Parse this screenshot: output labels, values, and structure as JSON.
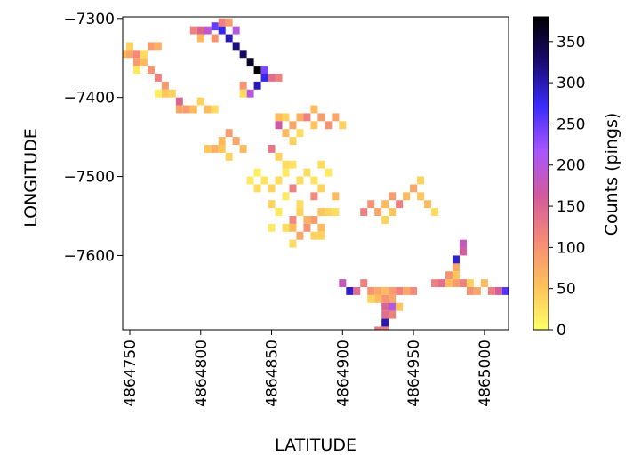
{
  "chart_data": {
    "type": "heatmap",
    "title": "",
    "xlabel": "LATITUDE",
    "ylabel": "LONGITUDE",
    "xlim": [
      4864745,
      4865017
    ],
    "ylim": [
      -7694,
      -7298
    ],
    "x_ticks": [
      4864750,
      4864800,
      4864850,
      4864900,
      4864950,
      4865000
    ],
    "y_ticks": [
      -7300,
      -7400,
      -7500,
      -7600
    ],
    "colorbar": {
      "label": "Counts (pings)",
      "range": [
        0,
        380
      ],
      "ticks": [
        0,
        50,
        100,
        150,
        200,
        250,
        300,
        350
      ],
      "colormap": "gnuplot2_r",
      "stops": [
        "#ffff66",
        "#ffc05a",
        "#f58a78",
        "#d25a9c",
        "#a855ff",
        "#3a2cff",
        "#1a0a70",
        "#000000"
      ]
    },
    "grid": false,
    "cell_size": [
      5,
      10
    ],
    "cells": [
      [
        4864750,
        -7335,
        40
      ],
      [
        4864750,
        -7345,
        80
      ],
      [
        4864755,
        -7345,
        110
      ],
      [
        4864755,
        -7355,
        90
      ],
      [
        4864760,
        -7355,
        60
      ],
      [
        4864760,
        -7345,
        30
      ],
      [
        4864765,
        -7335,
        90
      ],
      [
        4864770,
        -7335,
        70
      ],
      [
        4864765,
        -7365,
        100
      ],
      [
        4864770,
        -7375,
        120
      ],
      [
        4864775,
        -7385,
        90
      ],
      [
        4864775,
        -7395,
        50
      ],
      [
        4864780,
        -7395,
        40
      ],
      [
        4864785,
        -7405,
        150
      ],
      [
        4864785,
        -7415,
        80
      ],
      [
        4864790,
        -7415,
        90
      ],
      [
        4864795,
        -7415,
        60
      ],
      [
        4864800,
        -7405,
        40
      ],
      [
        4864805,
        -7415,
        60
      ],
      [
        4864810,
        -7415,
        30
      ],
      [
        4864755,
        -7365,
        20
      ],
      [
        4864770,
        -7395,
        15
      ],
      [
        4864745,
        -7345,
        60
      ],
      [
        4864795,
        -7315,
        120
      ],
      [
        4864800,
        -7315,
        150
      ],
      [
        4864805,
        -7315,
        190
      ],
      [
        4864810,
        -7310,
        250
      ],
      [
        4864815,
        -7315,
        280
      ],
      [
        4864820,
        -7325,
        300
      ],
      [
        4864825,
        -7335,
        320
      ],
      [
        4864830,
        -7345,
        330
      ],
      [
        4864835,
        -7355,
        360
      ],
      [
        4864840,
        -7365,
        380
      ],
      [
        4864845,
        -7365,
        240
      ],
      [
        4864845,
        -7375,
        280
      ],
      [
        4864840,
        -7385,
        300
      ],
      [
        4864835,
        -7395,
        200
      ],
      [
        4864850,
        -7375,
        140
      ],
      [
        4864855,
        -7375,
        120
      ],
      [
        4864830,
        -7385,
        100
      ],
      [
        4864815,
        -7305,
        120
      ],
      [
        4864820,
        -7305,
        90
      ],
      [
        4864825,
        -7315,
        200
      ],
      [
        4864810,
        -7325,
        100
      ],
      [
        4864800,
        -7325,
        60
      ],
      [
        4864830,
        -7395,
        30
      ],
      [
        4864855,
        -7425,
        60
      ],
      [
        4864860,
        -7425,
        40
      ],
      [
        4864865,
        -7435,
        80
      ],
      [
        4864870,
        -7425,
        70
      ],
      [
        4864875,
        -7425,
        120
      ],
      [
        4864880,
        -7415,
        60
      ],
      [
        4864885,
        -7425,
        90
      ],
      [
        4864880,
        -7435,
        50
      ],
      [
        4864890,
        -7435,
        100
      ],
      [
        4864895,
        -7425,
        80
      ],
      [
        4864900,
        -7435,
        40
      ],
      [
        4864870,
        -7445,
        30
      ],
      [
        4864865,
        -7455,
        40
      ],
      [
        4864860,
        -7445,
        60
      ],
      [
        4864855,
        -7435,
        170
      ],
      [
        4864805,
        -7465,
        50
      ],
      [
        4864810,
        -7465,
        70
      ],
      [
        4864815,
        -7455,
        60
      ],
      [
        4864820,
        -7445,
        90
      ],
      [
        4864825,
        -7455,
        80
      ],
      [
        4864830,
        -7465,
        60
      ],
      [
        4864815,
        -7465,
        50
      ],
      [
        4864820,
        -7475,
        40
      ],
      [
        4864850,
        -7465,
        130
      ],
      [
        4864855,
        -7475,
        40
      ],
      [
        4864860,
        -7485,
        30
      ],
      [
        4864835,
        -7505,
        20
      ],
      [
        4864840,
        -7515,
        30
      ],
      [
        4864845,
        -7505,
        25
      ],
      [
        4864840,
        -7495,
        15
      ],
      [
        4864850,
        -7515,
        40
      ],
      [
        4864855,
        -7505,
        30
      ],
      [
        4864860,
        -7495,
        20
      ],
      [
        4864865,
        -7485,
        25
      ],
      [
        4864870,
        -7505,
        30
      ],
      [
        4864865,
        -7515,
        120
      ],
      [
        4864860,
        -7525,
        20
      ],
      [
        4864875,
        -7495,
        30
      ],
      [
        4864880,
        -7505,
        25
      ],
      [
        4864885,
        -7515,
        40
      ],
      [
        4864880,
        -7525,
        110
      ],
      [
        4864885,
        -7485,
        30
      ],
      [
        4864890,
        -7495,
        20
      ],
      [
        4864895,
        -7525,
        60
      ],
      [
        4864890,
        -7545,
        40
      ],
      [
        4864895,
        -7545,
        30
      ],
      [
        4864850,
        -7535,
        40
      ],
      [
        4864855,
        -7545,
        20
      ],
      [
        4864870,
        -7535,
        30
      ],
      [
        4864860,
        -7565,
        30
      ],
      [
        4864865,
        -7565,
        60
      ],
      [
        4864870,
        -7575,
        80
      ],
      [
        4864875,
        -7565,
        100
      ],
      [
        4864880,
        -7555,
        90
      ],
      [
        4864885,
        -7565,
        60
      ],
      [
        4864880,
        -7575,
        40
      ],
      [
        4864885,
        -7545,
        50
      ],
      [
        4864875,
        -7555,
        70
      ],
      [
        4864870,
        -7545,
        40
      ],
      [
        4864865,
        -7555,
        110
      ],
      [
        4864865,
        -7585,
        30
      ],
      [
        4864850,
        -7565,
        20
      ],
      [
        4864885,
        -7575,
        40
      ],
      [
        4864915,
        -7545,
        120
      ],
      [
        4864920,
        -7535,
        100
      ],
      [
        4864925,
        -7545,
        80
      ],
      [
        4864930,
        -7535,
        60
      ],
      [
        4864935,
        -7525,
        90
      ],
      [
        4864940,
        -7535,
        120
      ],
      [
        4864945,
        -7525,
        60
      ],
      [
        4864950,
        -7515,
        80
      ],
      [
        4864955,
        -7525,
        50
      ],
      [
        4864960,
        -7535,
        60
      ],
      [
        4864955,
        -7505,
        40
      ],
      [
        4864930,
        -7555,
        40
      ],
      [
        4864935,
        -7545,
        50
      ],
      [
        4864965,
        -7545,
        30
      ],
      [
        4864900,
        -7635,
        180
      ],
      [
        4864905,
        -7645,
        290
      ],
      [
        4864910,
        -7645,
        140
      ],
      [
        4864915,
        -7635,
        120
      ],
      [
        4864920,
        -7645,
        100
      ],
      [
        4864925,
        -7645,
        80
      ],
      [
        4864930,
        -7645,
        60
      ],
      [
        4864935,
        -7645,
        90
      ],
      [
        4864940,
        -7645,
        120
      ],
      [
        4864945,
        -7645,
        80
      ],
      [
        4864950,
        -7645,
        110
      ],
      [
        4864925,
        -7655,
        60
      ],
      [
        4864930,
        -7655,
        100
      ],
      [
        4864935,
        -7655,
        80
      ],
      [
        4864930,
        -7665,
        150
      ],
      [
        4864935,
        -7665,
        200
      ],
      [
        4864930,
        -7675,
        140
      ],
      [
        4864935,
        -7675,
        120
      ],
      [
        4864930,
        -7685,
        300
      ],
      [
        4864930,
        -7695,
        120
      ],
      [
        4864925,
        -7695,
        130
      ],
      [
        4864920,
        -7655,
        40
      ],
      [
        4864940,
        -7665,
        50
      ],
      [
        4864965,
        -7635,
        120
      ],
      [
        4864970,
        -7635,
        140
      ],
      [
        4864975,
        -7625,
        100
      ],
      [
        4864980,
        -7615,
        80
      ],
      [
        4864980,
        -7605,
        290
      ],
      [
        4864985,
        -7595,
        160
      ],
      [
        4864985,
        -7585,
        180
      ],
      [
        4864975,
        -7635,
        60
      ],
      [
        4864980,
        -7635,
        90
      ],
      [
        4864985,
        -7635,
        120
      ],
      [
        4864990,
        -7645,
        100
      ],
      [
        4864995,
        -7645,
        80
      ],
      [
        4865000,
        -7635,
        60
      ],
      [
        4865005,
        -7645,
        120
      ],
      [
        4865010,
        -7645,
        160
      ],
      [
        4865015,
        -7645,
        260
      ],
      [
        4864990,
        -7635,
        40
      ],
      [
        4864980,
        -7625,
        50
      ]
    ]
  }
}
